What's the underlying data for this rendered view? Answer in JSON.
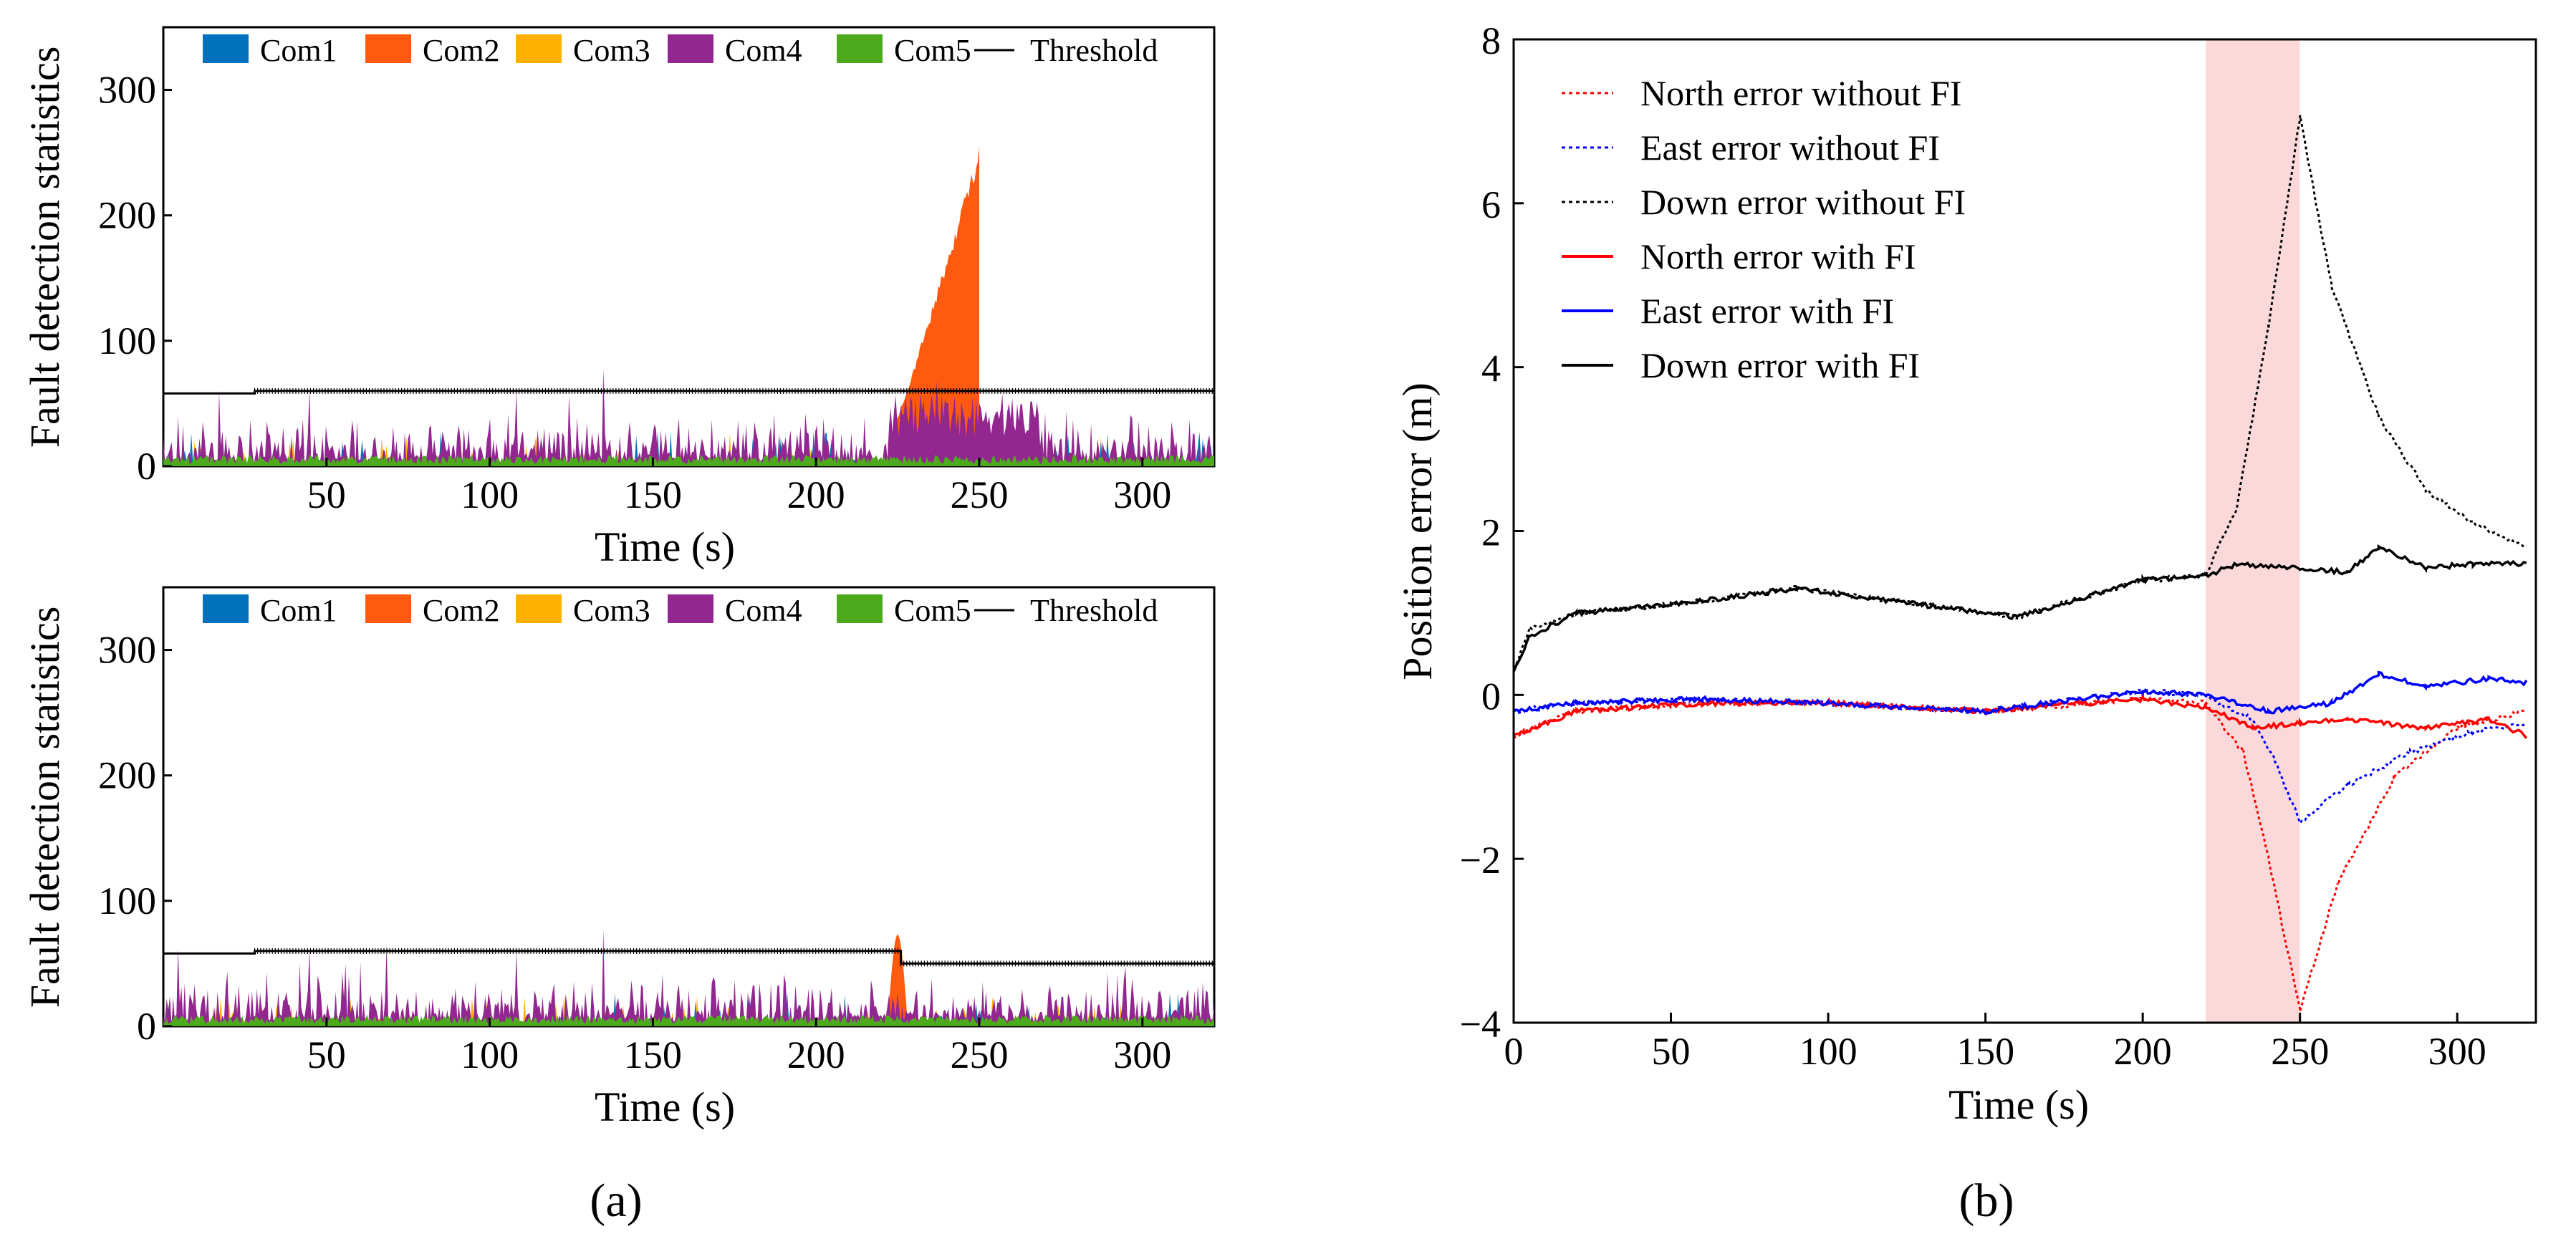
{
  "figure_labels": {
    "a": "(a)",
    "b": "(b)"
  },
  "colors": {
    "com1": "#0072BD",
    "com2": "#FF5A10",
    "com3": "#FFB000",
    "com4": "#92278F",
    "com5": "#4DAA1D",
    "threshold": "#000000",
    "north": "#FF0000",
    "east": "#0000FF",
    "down": "#000000",
    "shade": "#FBD9DA"
  },
  "chart_data": [
    {
      "type": "area",
      "title": "",
      "xlabel": "Time (s)",
      "ylabel": "Fault detection statistics",
      "xlim": [
        0,
        322
      ],
      "ylim": [
        0,
        350
      ],
      "xticks": [
        "50",
        "100",
        "150",
        "200",
        "250",
        "300"
      ],
      "yticks": [
        "0",
        "100",
        "200",
        "300"
      ],
      "legend": [
        "Com1",
        "Com2",
        "Com3",
        "Com4",
        "Com5",
        "Threshold"
      ],
      "threshold": {
        "x": [
          0,
          28,
          28,
          322
        ],
        "y": [
          58,
          58,
          60,
          60
        ]
      },
      "series_summary": {
        "com4_typical_range": [
          0,
          50
        ],
        "com4_max": 78,
        "com2_fault_interval": [
          222,
          250
        ],
        "com2_fault_peak": 258
      }
    },
    {
      "type": "area",
      "title": "",
      "xlabel": "Time (s)",
      "ylabel": "Fault detection statistics",
      "xlim": [
        0,
        322
      ],
      "ylim": [
        0,
        350
      ],
      "xticks": [
        "50",
        "100",
        "150",
        "200",
        "250",
        "300"
      ],
      "yticks": [
        "0",
        "100",
        "200",
        "300"
      ],
      "legend": [
        "Com1",
        "Com2",
        "Com3",
        "Com4",
        "Com5",
        "Threshold"
      ],
      "threshold": {
        "x": [
          0,
          28,
          28,
          226,
          226,
          322
        ],
        "y": [
          58,
          58,
          60,
          60,
          50,
          50
        ]
      },
      "series_summary": {
        "com4_typical_range": [
          0,
          50
        ],
        "com4_max": 78,
        "com2_fault_interval": [
          222,
          228
        ],
        "com2_fault_peak": 73
      }
    },
    {
      "type": "line",
      "title": "",
      "xlabel": "Time (s)",
      "ylabel": "Position error (m)",
      "xlim": [
        0,
        325
      ],
      "ylim": [
        -4,
        8
      ],
      "xticks": [
        "0",
        "50",
        "100",
        "150",
        "200",
        "250",
        "300"
      ],
      "yticks": [
        "−4",
        "−2",
        "0",
        "2",
        "4",
        "6",
        "8"
      ],
      "highlight_interval": [
        220,
        250
      ],
      "series": [
        {
          "name": "North error without FI",
          "style": "dotted",
          "color_key": "north",
          "x": [
            0,
            20,
            60,
            100,
            150,
            200,
            220,
            232,
            240,
            250,
            262,
            280,
            300,
            322
          ],
          "y": [
            -0.5,
            -0.2,
            -0.1,
            -0.1,
            -0.2,
            -0.05,
            -0.1,
            -0.7,
            -2.0,
            -3.85,
            -2.3,
            -1.0,
            -0.4,
            -0.2
          ]
        },
        {
          "name": "East error without FI",
          "style": "dotted",
          "color_key": "east",
          "x": [
            0,
            20,
            60,
            100,
            150,
            200,
            220,
            235,
            242,
            250,
            265,
            285,
            305,
            322
          ],
          "y": [
            -0.2,
            -0.1,
            -0.05,
            -0.1,
            -0.2,
            0.05,
            0.0,
            -0.3,
            -0.8,
            -1.55,
            -1.1,
            -0.7,
            -0.45,
            -0.35
          ]
        },
        {
          "name": "Down error without FI",
          "style": "dotted",
          "color_key": "down",
          "x": [
            0,
            5,
            20,
            50,
            90,
            130,
            160,
            200,
            220,
            230,
            240,
            250,
            260,
            275,
            290,
            305,
            322
          ],
          "y": [
            0.3,
            0.8,
            1.0,
            1.1,
            1.3,
            1.1,
            0.95,
            1.4,
            1.45,
            2.3,
            4.5,
            7.05,
            5.0,
            3.4,
            2.5,
            2.1,
            1.8
          ]
        },
        {
          "name": "North error with FI",
          "style": "solid",
          "color_key": "north",
          "x": [
            0,
            20,
            60,
            100,
            150,
            200,
            220,
            235,
            250,
            265,
            290,
            310,
            322
          ],
          "y": [
            -0.5,
            -0.2,
            -0.1,
            -0.1,
            -0.2,
            -0.05,
            -0.15,
            -0.4,
            -0.35,
            -0.3,
            -0.4,
            -0.3,
            -0.5
          ]
        },
        {
          "name": "East error with FI",
          "style": "solid",
          "color_key": "east",
          "x": [
            0,
            20,
            60,
            100,
            150,
            200,
            220,
            240,
            260,
            275,
            290,
            310,
            322
          ],
          "y": [
            -0.2,
            -0.1,
            -0.05,
            -0.1,
            -0.2,
            0.05,
            0.0,
            -0.2,
            -0.1,
            0.25,
            0.1,
            0.2,
            0.15
          ]
        },
        {
          "name": "Down error with FI",
          "style": "solid",
          "color_key": "down",
          "x": [
            0,
            5,
            20,
            50,
            90,
            130,
            160,
            200,
            220,
            230,
            250,
            265,
            275,
            290,
            305,
            322
          ],
          "y": [
            0.3,
            0.7,
            1.0,
            1.1,
            1.3,
            1.1,
            0.95,
            1.4,
            1.45,
            1.6,
            1.55,
            1.5,
            1.8,
            1.55,
            1.6,
            1.6
          ]
        }
      ]
    }
  ]
}
